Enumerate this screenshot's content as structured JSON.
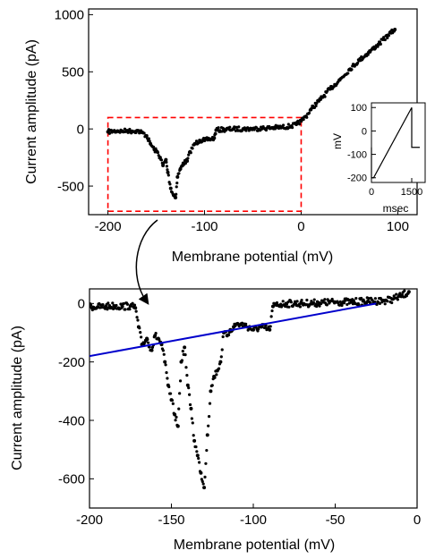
{
  "chart_data": [
    {
      "id": "main",
      "type": "scatter",
      "xlabel": "Membrane potential (mV)",
      "ylabel": "Current amplitude (pA)",
      "xlim": [
        -220,
        120
      ],
      "ylim": [
        -750,
        1050
      ],
      "xticks": [
        -200,
        -100,
        0,
        100
      ],
      "yticks": [
        -500,
        0,
        500,
        1000
      ],
      "zoom_box": {
        "x": [
          -200,
          0
        ],
        "y": [
          -720,
          100
        ],
        "color": "#ff0000",
        "style": "dashed"
      },
      "series": [
        {
          "color": "#000000",
          "x": [
            -200,
            -195,
            -190,
            -185,
            -180,
            -175,
            -170,
            -165,
            -160,
            -156,
            -152,
            -149,
            -146,
            -143,
            -140,
            -138,
            -135,
            -132,
            -130,
            -128,
            -125,
            -122,
            -118,
            -115,
            -110,
            -105,
            -100,
            -95,
            -90,
            -88,
            -80,
            -70,
            -60,
            -50,
            -40,
            -30,
            -20,
            -10,
            -5,
            0,
            5,
            10,
            20,
            30,
            40,
            50,
            60,
            70,
            80,
            90,
            97
          ],
          "y": [
            -25,
            -20,
            -18,
            -20,
            -15,
            -20,
            -15,
            -30,
            -60,
            -130,
            -180,
            -200,
            -250,
            -320,
            -270,
            -380,
            -520,
            -580,
            -600,
            -420,
            -350,
            -300,
            -280,
            -200,
            -130,
            -100,
            -100,
            -90,
            -80,
            -10,
            -5,
            0,
            0,
            2,
            5,
            10,
            15,
            25,
            40,
            70,
            110,
            170,
            260,
            350,
            430,
            520,
            600,
            670,
            740,
            820,
            870
          ]
        }
      ],
      "inset": {
        "xlabel": "msec",
        "ylabel": "mV",
        "xlim": [
          0,
          2000
        ],
        "ylim": [
          -220,
          120
        ],
        "xticks": [
          0,
          1500
        ],
        "yticks": [
          -200,
          -100,
          0,
          100
        ],
        "trace": {
          "x": [
            0,
            0,
            80,
            1500,
            1500,
            1800
          ],
          "y": [
            -70,
            -200,
            -200,
            100,
            -70,
            -70
          ]
        }
      }
    },
    {
      "id": "zoom",
      "type": "scatter",
      "xlabel": "Membrane potential (mV)",
      "ylabel": "Current amplitude (pA)",
      "xlim": [
        -200,
        0
      ],
      "ylim": [
        -700,
        50
      ],
      "xticks": [
        -200,
        -150,
        -100,
        -50,
        0
      ],
      "yticks": [
        -600,
        -400,
        -200,
        0
      ],
      "series": [
        {
          "color": "#000000",
          "x": [
            -200,
            -195,
            -190,
            -185,
            -180,
            -175,
            -172,
            -170,
            -168,
            -165,
            -162,
            -160,
            -158,
            -156,
            -154,
            -152,
            -150,
            -148,
            -146,
            -144,
            -142,
            -140,
            -138,
            -136,
            -134,
            -132,
            -130,
            -128,
            -126,
            -124,
            -122,
            -120,
            -118,
            -116,
            -114,
            -112,
            -110,
            -105,
            -100,
            -95,
            -90,
            -88,
            -86,
            -80,
            -70,
            -60,
            -50,
            -40,
            -30,
            -20,
            -15,
            -10,
            -5
          ],
          "y": [
            -10,
            -12,
            -10,
            -8,
            -10,
            -8,
            -15,
            -80,
            -140,
            -120,
            -160,
            -110,
            -120,
            -140,
            -200,
            -280,
            -330,
            -380,
            -420,
            -200,
            -150,
            -280,
            -360,
            -470,
            -520,
            -580,
            -630,
            -450,
            -300,
            -250,
            -230,
            -200,
            -100,
            -110,
            -90,
            -80,
            -70,
            -75,
            -90,
            -80,
            -90,
            -10,
            -5,
            0,
            0,
            2,
            5,
            5,
            8,
            10,
            15,
            25,
            40
          ]
        }
      ],
      "fit_line": {
        "color": "#0000cc",
        "x": [
          -200,
          -25
        ],
        "y": [
          -180,
          0
        ]
      }
    }
  ]
}
